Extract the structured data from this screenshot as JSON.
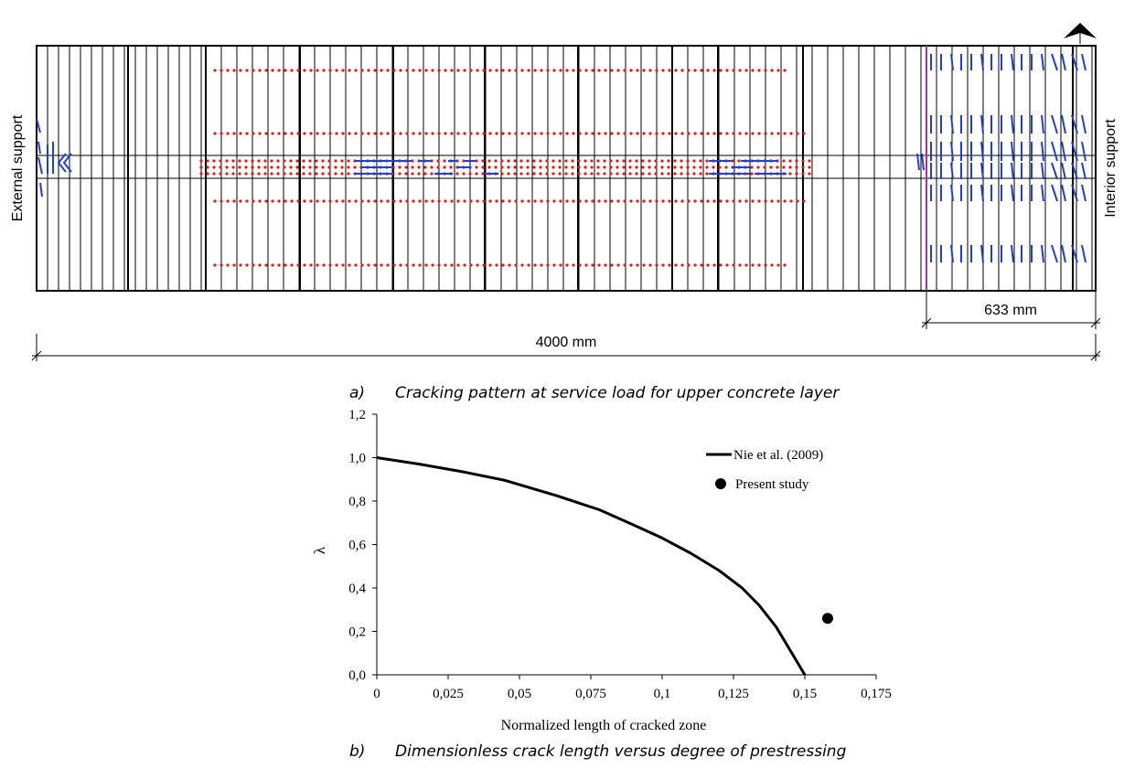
{
  "panel_a": {
    "caption_letter": "a)",
    "caption_text": "Cracking pattern at service load for upper concrete layer",
    "left_label": "External support",
    "right_label": "Interior support",
    "dim_total": "4000 mm",
    "dim_cracked": "633 mm",
    "colors": {
      "crack_flexural": "#1f3fcf",
      "crack_dot": "#e0191a",
      "mesh": "#000000",
      "boundary": "#e040e0"
    }
  },
  "panel_b": {
    "caption_letter": "b)",
    "caption_text": "Dimensionless crack length versus degree of prestressing"
  },
  "chart_data": {
    "type": "line",
    "xlabel": "Normalized length  of cracked zone",
    "ylabel": "λ",
    "xlim": [
      0,
      0.175
    ],
    "ylim": [
      0,
      1.2
    ],
    "x_ticks": [
      "0",
      "0,025",
      "0,05",
      "0,075",
      "0,1",
      "0,125",
      "0,15",
      "0,175"
    ],
    "y_ticks": [
      "0,0",
      "0,2",
      "0,4",
      "0,6",
      "0,8",
      "1,0",
      "1,2"
    ],
    "grid": false,
    "legend_position": "top-right",
    "series": [
      {
        "name": "Nie et al. (2009)",
        "style": "line",
        "color": "#000000",
        "x": [
          0,
          0.015,
          0.03,
          0.045,
          0.063,
          0.078,
          0.09,
          0.1,
          0.11,
          0.12,
          0.128,
          0.134,
          0.14,
          0.145,
          0.15
        ],
        "y": [
          1.0,
          0.97,
          0.935,
          0.895,
          0.825,
          0.76,
          0.69,
          0.63,
          0.56,
          0.48,
          0.4,
          0.32,
          0.22,
          0.11,
          0.0
        ]
      },
      {
        "name": "Present study",
        "style": "marker",
        "color": "#000000",
        "x": [
          0.158
        ],
        "y": [
          0.26
        ]
      }
    ]
  }
}
